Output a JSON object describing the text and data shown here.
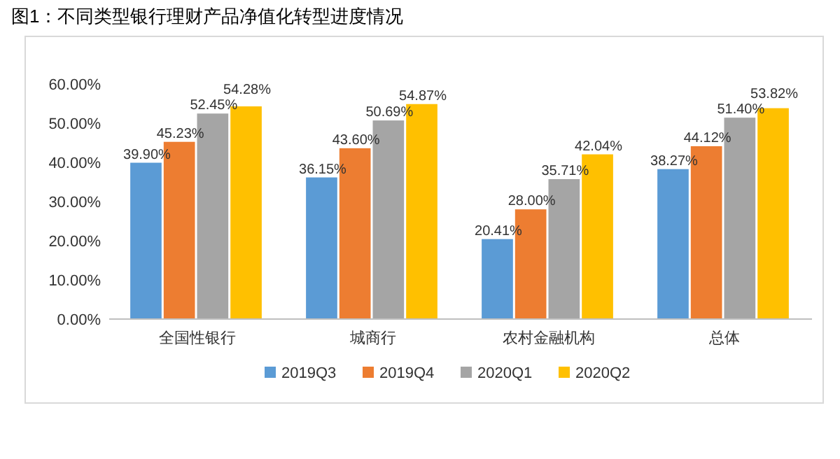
{
  "chart_data": {
    "type": "bar",
    "title": "图1：不同类型银行理财产品净值化转型进度情况",
    "categories": [
      "全国性银行",
      "城商行",
      "农村金融机构",
      "总体"
    ],
    "series": [
      {
        "name": "2019Q3",
        "color": "#5b9bd5",
        "values": [
          39.9,
          36.15,
          20.41,
          38.27
        ],
        "value_labels": [
          "39.90%",
          "36.15%",
          "20.41%",
          "38.27%"
        ]
      },
      {
        "name": "2019Q4",
        "color": "#ed7d31",
        "values": [
          45.23,
          43.6,
          28.0,
          44.12
        ],
        "value_labels": [
          "45.23%",
          "43.60%",
          "28.00%",
          "44.12%"
        ]
      },
      {
        "name": "2020Q1",
        "color": "#a5a5a5",
        "values": [
          52.45,
          50.69,
          35.71,
          51.4
        ],
        "value_labels": [
          "52.45%",
          "50.69%",
          "35.71%",
          "51.40%"
        ]
      },
      {
        "name": "2020Q2",
        "color": "#ffc000",
        "values": [
          54.28,
          54.87,
          42.04,
          53.82
        ],
        "value_labels": [
          "54.28%",
          "54.87%",
          "42.04%",
          "53.82%"
        ]
      }
    ],
    "ylim": [
      0,
      60
    ],
    "yticks": [
      {
        "value": 0,
        "label": "0.00%"
      },
      {
        "value": 10,
        "label": "10.00%"
      },
      {
        "value": 20,
        "label": "20.00%"
      },
      {
        "value": 30,
        "label": "30.00%"
      },
      {
        "value": 40,
        "label": "40.00%"
      },
      {
        "value": 50,
        "label": "50.00%"
      },
      {
        "value": 60,
        "label": "60.00%"
      }
    ],
    "grid": false,
    "legend": "bottom"
  }
}
